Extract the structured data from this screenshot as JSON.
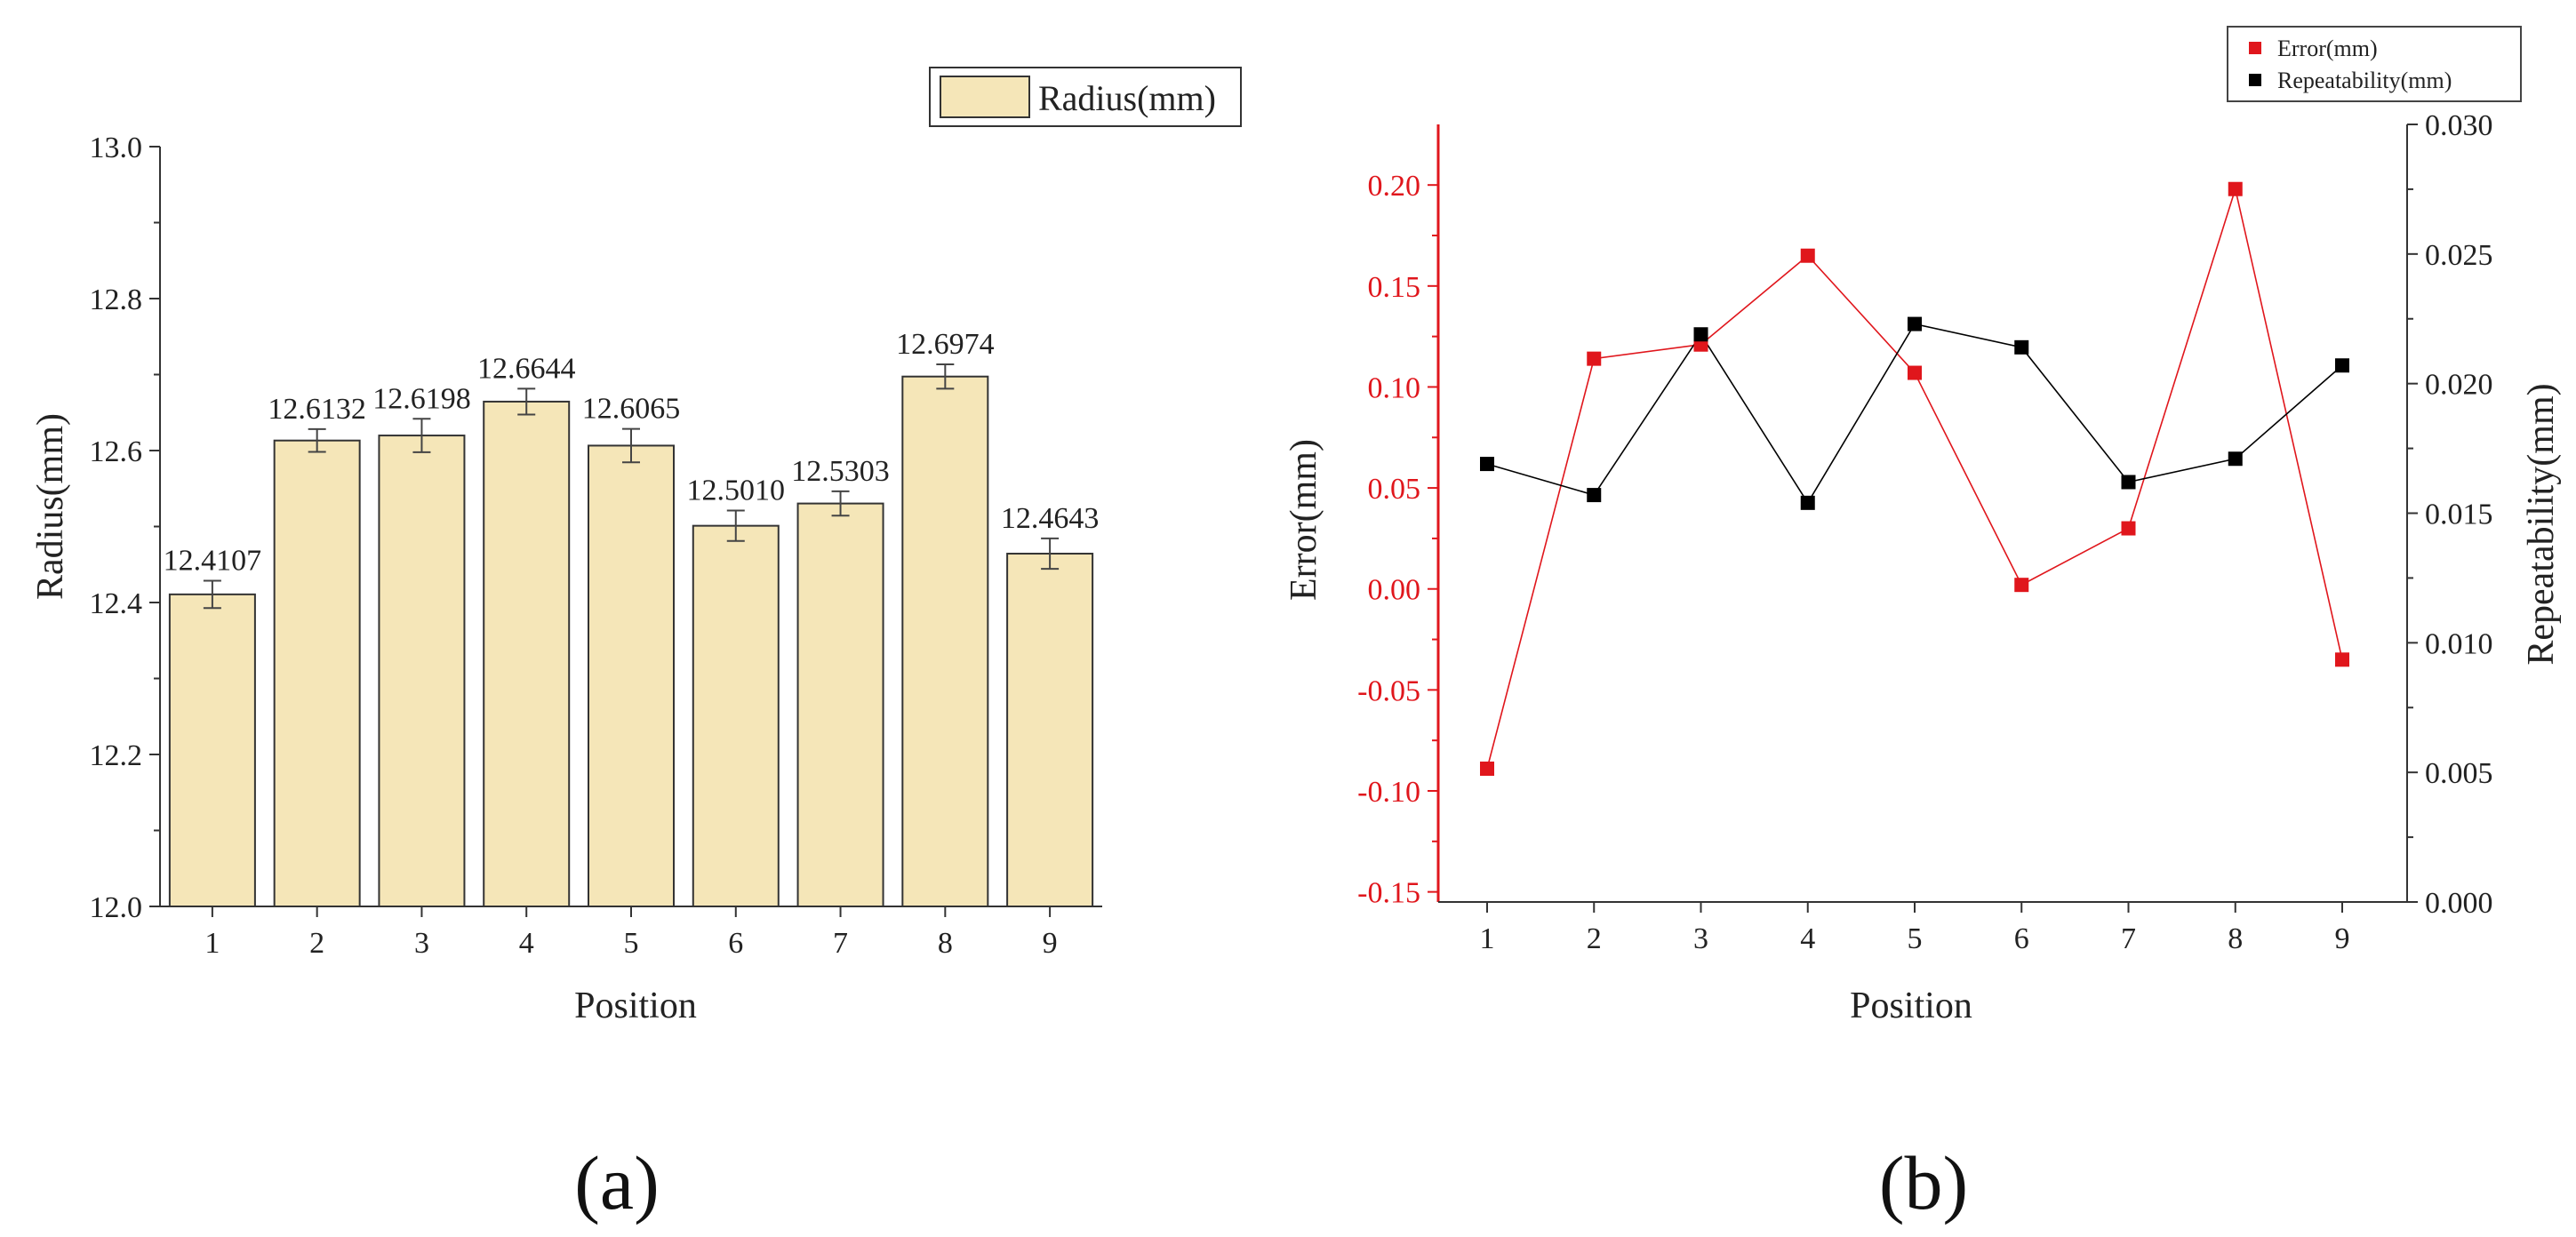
{
  "chart_data": [
    {
      "type": "bar",
      "panel_label": "(a)",
      "categories": [
        "1",
        "2",
        "3",
        "4",
        "5",
        "6",
        "7",
        "8",
        "9"
      ],
      "values": [
        12.4107,
        12.6132,
        12.6198,
        12.6644,
        12.6065,
        12.501,
        12.5303,
        12.6974,
        12.4643
      ],
      "data_labels": [
        "12.4107",
        "12.6132",
        "12.6198",
        "12.6644",
        "12.6065",
        "12.5010",
        "12.5303",
        "12.6974",
        "12.4643"
      ],
      "errors": [
        0.018,
        0.015,
        0.022,
        0.017,
        0.022,
        0.02,
        0.016,
        0.016,
        0.02
      ],
      "series_name": "Radius(mm)",
      "xlabel": "Position",
      "ylabel": "Radius(mm)",
      "ylim": [
        12.0,
        13.0
      ],
      "yticks": [
        12.0,
        12.2,
        12.4,
        12.6,
        12.8,
        13.0
      ],
      "ytick_labels": [
        "12.0",
        "12.2",
        "12.4",
        "12.6",
        "12.8",
        "13.0"
      ],
      "bar_color": "#f5e6b8",
      "legend_position": "top-right"
    },
    {
      "type": "line",
      "panel_label": "(b)",
      "x": [
        "1",
        "2",
        "3",
        "4",
        "5",
        "6",
        "7",
        "8",
        "9"
      ],
      "xlabel": "Position",
      "ylabel": "Error(mm)",
      "ylabel_right": "Repeatability(mm)",
      "ylim": [
        -0.155,
        0.23
      ],
      "ylim_right": [
        0.0,
        0.03
      ],
      "yticks": [
        -0.15,
        -0.1,
        -0.05,
        0.0,
        0.05,
        0.1,
        0.15,
        0.2
      ],
      "ytick_labels": [
        "-0.15",
        "-0.10",
        "-0.05",
        "0.00",
        "0.05",
        "0.10",
        "0.15",
        "0.20"
      ],
      "yticks_right": [
        0.0,
        0.005,
        0.01,
        0.015,
        0.02,
        0.025,
        0.03
      ],
      "ytick_labels_right": [
        "0.000",
        "0.005",
        "0.010",
        "0.015",
        "0.020",
        "0.025",
        "0.030"
      ],
      "series": [
        {
          "name": "Error(mm)",
          "axis": "left",
          "color": "#e0161c",
          "values": [
            -0.089,
            0.114,
            0.121,
            0.165,
            0.107,
            0.002,
            0.03,
            0.198,
            -0.035
          ]
        },
        {
          "name": "Repeatability(mm)",
          "axis": "right",
          "color": "#000000",
          "values": [
            0.0169,
            0.0157,
            0.0219,
            0.0154,
            0.0223,
            0.0214,
            0.0162,
            0.0171,
            0.0207
          ]
        }
      ],
      "left_axis_color": "#e0161c",
      "legend_position": "top-right"
    }
  ]
}
